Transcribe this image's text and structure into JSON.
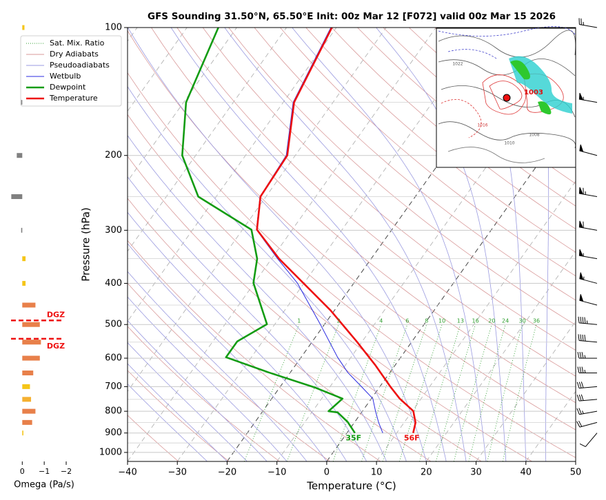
{
  "chart_data": {
    "type": "skewt",
    "title": "GFS Sounding 31.50°N, 65.50°E Init: 00z Mar 12 [F072] valid 00z Mar 15 2026",
    "xlabel": "Temperature (°C)",
    "ylabel": "Pressure (hPa)",
    "xlim": [
      -40,
      50
    ],
    "ylim": [
      1050,
      100
    ],
    "log_y": true,
    "grid": true,
    "legend": "upper left",
    "xticks": [
      {
        "value": -40,
        "label": "−40"
      },
      {
        "value": -30,
        "label": "−30"
      },
      {
        "value": -20,
        "label": "−20"
      },
      {
        "value": -10,
        "label": "−10"
      },
      0,
      10,
      20,
      30,
      40,
      50
    ],
    "yticks": [
      100,
      200,
      300,
      400,
      500,
      600,
      700,
      800,
      900,
      1000
    ],
    "minor_yticks": [
      150,
      250,
      350,
      450,
      550,
      650,
      750,
      850,
      950
    ],
    "highlight_isotherms": [
      0,
      -20
    ],
    "series": [
      {
        "name": "Temperature",
        "color": "#ee1111",
        "surface_label": "56F",
        "pressure": [
          900,
          851,
          799,
          747,
          700,
          624,
          548,
          463,
          399,
          350,
          299,
          250,
          200,
          150,
          100
        ],
        "values": [
          13.3,
          12.3,
          10.2,
          5.7,
          2.1,
          -3.9,
          -11.1,
          -20.8,
          -30.2,
          -38.5,
          -47.1,
          -51.1,
          -51.6,
          -57.8,
          -60.9
        ]
      },
      {
        "name": "Dewpoint",
        "color": "#139c13",
        "surface_label": "35F",
        "pressure": [
          900,
          848,
          805,
          800,
          747,
          704,
          648,
          597,
          548,
          499,
          399,
          350,
          299,
          250,
          200,
          150,
          100
        ],
        "values": [
          1.6,
          -1.4,
          -4.8,
          -6.8,
          -5.8,
          -12.8,
          -24.4,
          -35.1,
          -35.1,
          -31.6,
          -40.2,
          -42.9,
          -48.2,
          -63.6,
          -72.7,
          -79.5,
          -83.7
        ]
      },
      {
        "name": "Wetbulb",
        "color": "#2a2ae0",
        "pressure": [
          900,
          851,
          799,
          747,
          700,
          648,
          597,
          499,
          399,
          350,
          299,
          250,
          200,
          150,
          100
        ],
        "values": [
          7.2,
          4.9,
          2.6,
          0.3,
          -3.7,
          -8.5,
          -12.7,
          -20.9,
          -31.4,
          -38.8,
          -47.2,
          -51.2,
          -51.8,
          -58.0,
          -61.1
        ]
      }
    ],
    "reference_lines": [
      {
        "name": "Sat. Mix. Ratio",
        "color": "#2e9e2e"
      },
      {
        "name": "Dry Adiabats",
        "color": "#d99a9a"
      },
      {
        "name": "Pseudoadiabats",
        "color": "#9a9ae0"
      }
    ],
    "mixing_ratios": [
      1,
      2,
      4,
      6,
      8,
      10,
      13,
      16,
      20,
      24,
      30,
      36
    ],
    "wind": {
      "pressure": [
        100,
        150,
        200,
        250,
        300,
        350,
        400,
        450,
        500,
        550,
        600,
        650,
        700,
        750,
        800,
        850,
        900
      ],
      "speed": [
        25,
        55,
        50,
        65,
        60,
        55,
        55,
        50,
        45,
        40,
        35,
        35,
        30,
        30,
        25,
        20,
        10
      ],
      "direction": [
        280,
        280,
        285,
        280,
        280,
        280,
        285,
        285,
        275,
        275,
        270,
        270,
        265,
        265,
        260,
        255,
        220
      ]
    },
    "omega": {
      "xlabel": "Omega (Pa/s)",
      "xlim": [
        0.7,
        -2
      ],
      "xticks": [
        0,
        {
          "value": -1,
          "label": "−1"
        },
        {
          "value": -2,
          "label": "−2"
        }
      ],
      "pressure": [
        100,
        150,
        200,
        250,
        300,
        350,
        400,
        450,
        500,
        550,
        600,
        650,
        700,
        750,
        800,
        850,
        900
      ],
      "values": [
        -0.1,
        0.05,
        0.25,
        0.5,
        0.05,
        -0.15,
        -0.15,
        -0.6,
        -0.8,
        -0.85,
        -0.8,
        -0.5,
        -0.35,
        -0.4,
        -0.6,
        -0.45,
        -0.05
      ],
      "colors": [
        "#f5c518",
        "#808080",
        "#808080",
        "#808080",
        "#808080",
        "#f5c518",
        "#f5c518",
        "#e8804a",
        "#e8804a",
        "#e8804a",
        "#e8804a",
        "#e8804a",
        "#f5c518",
        "#f5b030",
        "#e8804a",
        "#e8804a",
        "#f5c518"
      ]
    },
    "dgz": {
      "pressure": [
        489,
        540
      ],
      "labels": [
        "DGZ",
        "DGZ"
      ],
      "color": "#ee1111"
    },
    "inset_map": {
      "labels": [
        "1003",
        "1022",
        "1010",
        "1008",
        "1016"
      ]
    }
  }
}
